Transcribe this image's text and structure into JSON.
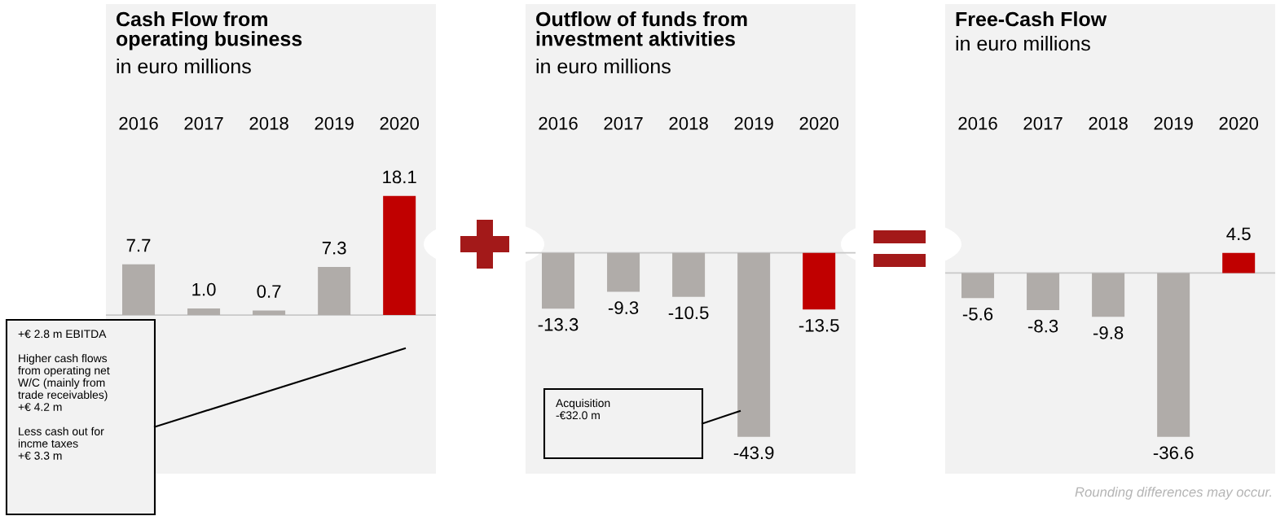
{
  "chart_data": [
    {
      "type": "bar",
      "title": "Cash Flow from\noperating business",
      "subtitle": "in euro millions",
      "categories": [
        "2016",
        "2017",
        "2018",
        "2019",
        "2020"
      ],
      "values": [
        7.7,
        1.0,
        0.7,
        7.3,
        18.1
      ],
      "colors": [
        "#b0aca9",
        "#b0aca9",
        "#b0aca9",
        "#b0aca9",
        "#c00000"
      ],
      "value_labels": [
        "7.7",
        "1.0",
        "0.7",
        "7.3",
        "18.1"
      ],
      "annotations": [
        "+€ 2.8 m EBITDA\n\nHigher cash flows\nfrom operating net\nW/C (mainly from\ntrade receivables)\n+€ 4.2 m\n\nLess cash out for\nincme taxes\n+€ 3.3 m"
      ]
    },
    {
      "type": "bar",
      "title": "Outflow of funds from\ninvestment aktivities",
      "subtitle": "in euro millions",
      "categories": [
        "2016",
        "2017",
        "2018",
        "2019",
        "2020"
      ],
      "values": [
        -13.3,
        -9.3,
        -10.5,
        -43.9,
        -13.5
      ],
      "colors": [
        "#b0aca9",
        "#b0aca9",
        "#b0aca9",
        "#b0aca9",
        "#c00000"
      ],
      "value_labels": [
        "-13.3",
        "-9.3",
        "-10.5",
        "-43.9",
        "-13.5"
      ],
      "annotations": [
        "Acquisition\n-€32.0 m"
      ]
    },
    {
      "type": "bar",
      "title": "Free-Cash Flow",
      "subtitle": "in euro millions",
      "categories": [
        "2016",
        "2017",
        "2018",
        "2019",
        "2020"
      ],
      "values": [
        -5.6,
        -8.3,
        -9.8,
        -36.6,
        4.5
      ],
      "colors": [
        "#b0aca9",
        "#b0aca9",
        "#b0aca9",
        "#b0aca9",
        "#c00000"
      ],
      "value_labels": [
        "-5.6",
        "-8.3",
        "-9.8",
        "-36.6",
        "4.5"
      ],
      "annotations": [
        "Rounding differences may occur."
      ]
    }
  ]
}
